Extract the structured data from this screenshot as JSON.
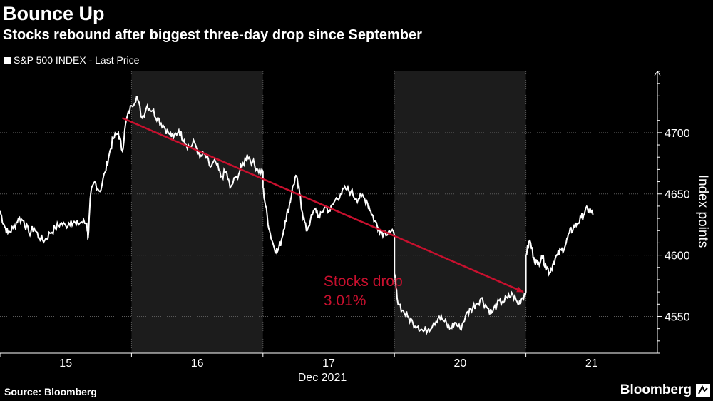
{
  "header": {
    "title": "Bounce Up",
    "subtitle": "Stocks rebound after biggest three-day drop since September"
  },
  "legend": {
    "label": "S&P 500 INDEX - Last Price"
  },
  "footer": {
    "source": "Source: Bloomberg",
    "brand": "Bloomberg"
  },
  "colors": {
    "background": "#000000",
    "line": "#ffffff",
    "shade": "#1c1c1c",
    "grid": "#5a5a5a",
    "annotation": "#c8102e"
  },
  "chart_data": {
    "type": "line",
    "title": "Bounce Up",
    "subtitle": "Stocks rebound after biggest three-day drop since September",
    "xlabel": "Dec 2021",
    "ylabel": "Index points",
    "ylim": [
      4520,
      4750
    ],
    "yticks": [
      4550,
      4600,
      4650,
      4700
    ],
    "xlim": [
      0,
      5
    ],
    "days": [
      "15",
      "16",
      "17",
      "20",
      "21"
    ],
    "x_axis_label": "Dec 2021",
    "shaded_sessions": [
      "16",
      "20"
    ],
    "grid": true,
    "series": [
      {
        "name": "S&P 500 INDEX - Last Price",
        "points": [
          [
            0.0,
            4636
          ],
          [
            0.03,
            4625
          ],
          [
            0.06,
            4618
          ],
          [
            0.1,
            4622
          ],
          [
            0.14,
            4630
          ],
          [
            0.18,
            4628
          ],
          [
            0.22,
            4618
          ],
          [
            0.26,
            4622
          ],
          [
            0.3,
            4614
          ],
          [
            0.34,
            4612
          ],
          [
            0.38,
            4618
          ],
          [
            0.42,
            4622
          ],
          [
            0.46,
            4626
          ],
          [
            0.5,
            4624
          ],
          [
            0.54,
            4628
          ],
          [
            0.58,
            4625
          ],
          [
            0.62,
            4627
          ],
          [
            0.66,
            4626
          ],
          [
            0.67,
            4614
          ],
          [
            0.69,
            4650
          ],
          [
            0.72,
            4660
          ],
          [
            0.76,
            4652
          ],
          [
            0.8,
            4668
          ],
          [
            0.83,
            4682
          ],
          [
            0.86,
            4695
          ],
          [
            0.9,
            4700
          ],
          [
            0.93,
            4685
          ],
          [
            0.96,
            4710
          ],
          [
            1.0,
            4722
          ],
          [
            1.04,
            4730
          ],
          [
            1.08,
            4712
          ],
          [
            1.12,
            4722
          ],
          [
            1.16,
            4718
          ],
          [
            1.2,
            4712
          ],
          [
            1.24,
            4706
          ],
          [
            1.28,
            4700
          ],
          [
            1.32,
            4696
          ],
          [
            1.36,
            4702
          ],
          [
            1.4,
            4694
          ],
          [
            1.44,
            4688
          ],
          [
            1.48,
            4692
          ],
          [
            1.52,
            4680
          ],
          [
            1.56,
            4682
          ],
          [
            1.6,
            4672
          ],
          [
            1.64,
            4676
          ],
          [
            1.68,
            4664
          ],
          [
            1.72,
            4668
          ],
          [
            1.75,
            4655
          ],
          [
            1.8,
            4664
          ],
          [
            1.84,
            4672
          ],
          [
            1.88,
            4682
          ],
          [
            1.92,
            4676
          ],
          [
            1.96,
            4670
          ],
          [
            2.0,
            4668
          ],
          [
            2.0,
            4655
          ],
          [
            2.02,
            4640
          ],
          [
            2.05,
            4620
          ],
          [
            2.08,
            4608
          ],
          [
            2.11,
            4603
          ],
          [
            2.14,
            4612
          ],
          [
            2.17,
            4628
          ],
          [
            2.2,
            4640
          ],
          [
            2.22,
            4652
          ],
          [
            2.25,
            4665
          ],
          [
            2.28,
            4650
          ],
          [
            2.3,
            4635
          ],
          [
            2.33,
            4620
          ],
          [
            2.36,
            4628
          ],
          [
            2.4,
            4638
          ],
          [
            2.43,
            4630
          ],
          [
            2.47,
            4640
          ],
          [
            2.51,
            4636
          ],
          [
            2.55,
            4645
          ],
          [
            2.59,
            4650
          ],
          [
            2.63,
            4654
          ],
          [
            2.67,
            4652
          ],
          [
            2.71,
            4646
          ],
          [
            2.75,
            4648
          ],
          [
            2.79,
            4644
          ],
          [
            2.82,
            4636
          ],
          [
            2.85,
            4628
          ],
          [
            2.88,
            4622
          ],
          [
            2.92,
            4618
          ],
          [
            2.96,
            4620
          ],
          [
            3.0,
            4616
          ],
          [
            3.0,
            4585
          ],
          [
            3.02,
            4565
          ],
          [
            3.06,
            4555
          ],
          [
            3.1,
            4550
          ],
          [
            3.14,
            4545
          ],
          [
            3.18,
            4542
          ],
          [
            3.22,
            4538
          ],
          [
            3.26,
            4540
          ],
          [
            3.3,
            4545
          ],
          [
            3.34,
            4550
          ],
          [
            3.38,
            4546
          ],
          [
            3.42,
            4540
          ],
          [
            3.46,
            4545
          ],
          [
            3.5,
            4540
          ],
          [
            3.54,
            4550
          ],
          [
            3.58,
            4556
          ],
          [
            3.62,
            4560
          ],
          [
            3.66,
            4565
          ],
          [
            3.7,
            4558
          ],
          [
            3.74,
            4553
          ],
          [
            3.78,
            4560
          ],
          [
            3.82,
            4562
          ],
          [
            3.86,
            4565
          ],
          [
            3.9,
            4568
          ],
          [
            3.94,
            4560
          ],
          [
            3.97,
            4565
          ],
          [
            4.0,
            4570
          ],
          [
            4.0,
            4600
          ],
          [
            4.03,
            4612
          ],
          [
            4.06,
            4598
          ],
          [
            4.09,
            4592
          ],
          [
            4.12,
            4600
          ],
          [
            4.15,
            4592
          ],
          [
            4.18,
            4586
          ],
          [
            4.21,
            4594
          ],
          [
            4.24,
            4600
          ],
          [
            4.27,
            4604
          ],
          [
            4.3,
            4608
          ],
          [
            4.33,
            4618
          ],
          [
            4.36,
            4622
          ],
          [
            4.39,
            4626
          ],
          [
            4.42,
            4630
          ],
          [
            4.45,
            4636
          ],
          [
            4.48,
            4637
          ],
          [
            4.51,
            4633
          ]
        ]
      }
    ],
    "annotation": {
      "text_line1": "Stocks drop",
      "text_line2": "3.01%",
      "from": [
        0.93,
        4712
      ],
      "to": [
        3.98,
        4570
      ]
    }
  }
}
